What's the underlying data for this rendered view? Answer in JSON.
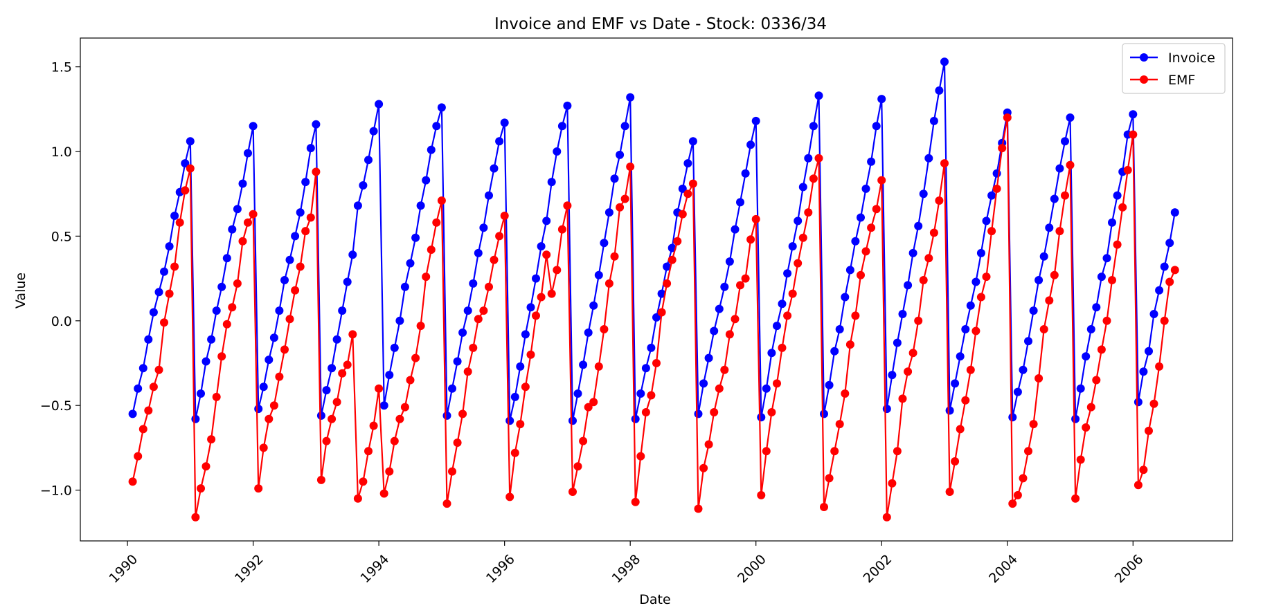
{
  "chart_data": {
    "type": "line",
    "title": "Invoice and EMF vs Date - Stock: 0336/34",
    "xlabel": "Date",
    "ylabel": "Value",
    "xlim": [
      "1989-04-01",
      "2007-08-01"
    ],
    "ylim": [
      -1.3,
      1.67
    ],
    "x_ticks": [
      "1990",
      "1992",
      "1994",
      "1996",
      "1998",
      "2000",
      "2002",
      "2004",
      "2006"
    ],
    "y_ticks": [
      "−1.0",
      "−0.5",
      "0.0",
      "0.5",
      "1.0",
      "1.5"
    ],
    "grid": false,
    "legend_position": "top-right",
    "start_month": "1990-02",
    "series": [
      {
        "name": "Invoice",
        "color": "#0000ff",
        "values": [
          -0.55,
          -0.4,
          -0.28,
          -0.11,
          0.05,
          0.17,
          0.29,
          0.44,
          0.62,
          0.76,
          0.93,
          1.06,
          -0.58,
          -0.43,
          -0.24,
          -0.11,
          0.06,
          0.2,
          0.37,
          0.54,
          0.66,
          0.81,
          0.99,
          1.15,
          -0.52,
          -0.39,
          -0.23,
          -0.1,
          0.06,
          0.24,
          0.36,
          0.5,
          0.64,
          0.82,
          1.02,
          1.16,
          -0.56,
          -0.41,
          -0.28,
          -0.11,
          0.06,
          0.23,
          0.39,
          0.68,
          0.8,
          0.95,
          1.12,
          1.28,
          -0.5,
          -0.32,
          -0.16,
          0.0,
          0.2,
          0.34,
          0.49,
          0.68,
          0.83,
          1.01,
          1.15,
          1.26,
          -0.56,
          -0.4,
          -0.24,
          -0.07,
          0.06,
          0.22,
          0.4,
          0.55,
          0.74,
          0.9,
          1.06,
          1.17,
          -0.59,
          -0.45,
          -0.27,
          -0.08,
          0.08,
          0.25,
          0.44,
          0.59,
          0.82,
          1.0,
          1.15,
          1.27,
          -0.59,
          -0.43,
          -0.26,
          -0.07,
          0.09,
          0.27,
          0.46,
          0.64,
          0.84,
          0.98,
          1.15,
          1.32,
          -0.58,
          -0.43,
          -0.28,
          -0.16,
          0.02,
          0.16,
          0.32,
          0.43,
          0.64,
          0.78,
          0.93,
          1.06,
          -0.55,
          -0.37,
          -0.22,
          -0.06,
          0.07,
          0.2,
          0.35,
          0.54,
          0.7,
          0.87,
          1.04,
          1.18,
          -0.57,
          -0.4,
          -0.19,
          -0.03,
          0.1,
          0.28,
          0.44,
          0.59,
          0.79,
          0.96,
          1.15,
          1.33,
          -0.55,
          -0.38,
          -0.18,
          -0.05,
          0.14,
          0.3,
          0.47,
          0.61,
          0.78,
          0.94,
          1.15,
          1.31,
          -0.52,
          -0.32,
          -0.13,
          0.04,
          0.21,
          0.4,
          0.56,
          0.75,
          0.96,
          1.18,
          1.36,
          1.53,
          -0.53,
          -0.37,
          -0.21,
          -0.05,
          0.09,
          0.23,
          0.4,
          0.59,
          0.74,
          0.87,
          1.05,
          1.23,
          -0.57,
          -0.42,
          -0.29,
          -0.12,
          0.06,
          0.24,
          0.38,
          0.55,
          0.72,
          0.9,
          1.06,
          1.2,
          -0.58,
          -0.4,
          -0.21,
          -0.05,
          0.08,
          0.26,
          0.37,
          0.58,
          0.74,
          0.88,
          1.1,
          1.22,
          -0.48,
          -0.3,
          -0.18,
          0.04,
          0.18,
          0.32,
          0.46,
          0.64
        ]
      },
      {
        "name": "EMF",
        "color": "#ff0000",
        "values": [
          -0.95,
          -0.8,
          -0.64,
          -0.53,
          -0.39,
          -0.29,
          -0.01,
          0.16,
          0.32,
          0.58,
          0.77,
          0.9,
          -1.16,
          -0.99,
          -0.86,
          -0.7,
          -0.45,
          -0.21,
          -0.02,
          0.08,
          0.22,
          0.47,
          0.58,
          0.63,
          -0.99,
          -0.75,
          -0.58,
          -0.5,
          -0.33,
          -0.17,
          0.01,
          0.18,
          0.32,
          0.53,
          0.61,
          0.88,
          -0.94,
          -0.71,
          -0.58,
          -0.48,
          -0.31,
          -0.26,
          -0.08,
          -1.05,
          -0.95,
          -0.77,
          -0.62,
          -0.4,
          -1.02,
          -0.89,
          -0.71,
          -0.58,
          -0.51,
          -0.35,
          -0.22,
          -0.03,
          0.26,
          0.42,
          0.58,
          0.71,
          -1.08,
          -0.89,
          -0.72,
          -0.55,
          -0.3,
          -0.16,
          0.01,
          0.06,
          0.2,
          0.36,
          0.5,
          0.62,
          -1.04,
          -0.78,
          -0.61,
          -0.39,
          -0.2,
          0.03,
          0.14,
          0.39,
          0.16,
          0.3,
          0.54,
          0.68,
          -1.01,
          -0.86,
          -0.71,
          -0.51,
          -0.48,
          -0.27,
          -0.05,
          0.22,
          0.38,
          0.67,
          0.72,
          0.91,
          -1.07,
          -0.8,
          -0.54,
          -0.44,
          -0.25,
          0.05,
          0.22,
          0.36,
          0.47,
          0.63,
          0.75,
          0.81,
          -1.11,
          -0.87,
          -0.73,
          -0.54,
          -0.4,
          -0.29,
          -0.08,
          0.01,
          0.21,
          0.25,
          0.48,
          0.6,
          -1.03,
          -0.77,
          -0.54,
          -0.37,
          -0.16,
          0.03,
          0.16,
          0.34,
          0.49,
          0.64,
          0.84,
          0.96,
          -1.1,
          -0.93,
          -0.77,
          -0.61,
          -0.43,
          -0.14,
          0.03,
          0.27,
          0.41,
          0.55,
          0.66,
          0.83,
          -1.16,
          -0.96,
          -0.77,
          -0.46,
          -0.3,
          -0.19,
          0.0,
          0.24,
          0.37,
          0.52,
          0.71,
          0.93,
          -1.01,
          -0.83,
          -0.64,
          -0.47,
          -0.29,
          -0.06,
          0.14,
          0.26,
          0.53,
          0.78,
          1.02,
          1.2,
          -1.08,
          -1.03,
          -0.93,
          -0.77,
          -0.61,
          -0.34,
          -0.05,
          0.12,
          0.27,
          0.53,
          0.74,
          0.92,
          -1.05,
          -0.82,
          -0.63,
          -0.51,
          -0.35,
          -0.17,
          0.0,
          0.24,
          0.45,
          0.67,
          0.89,
          1.1,
          -0.97,
          -0.88,
          -0.65,
          -0.49,
          -0.27,
          0.0,
          0.23,
          0.3
        ]
      }
    ]
  }
}
